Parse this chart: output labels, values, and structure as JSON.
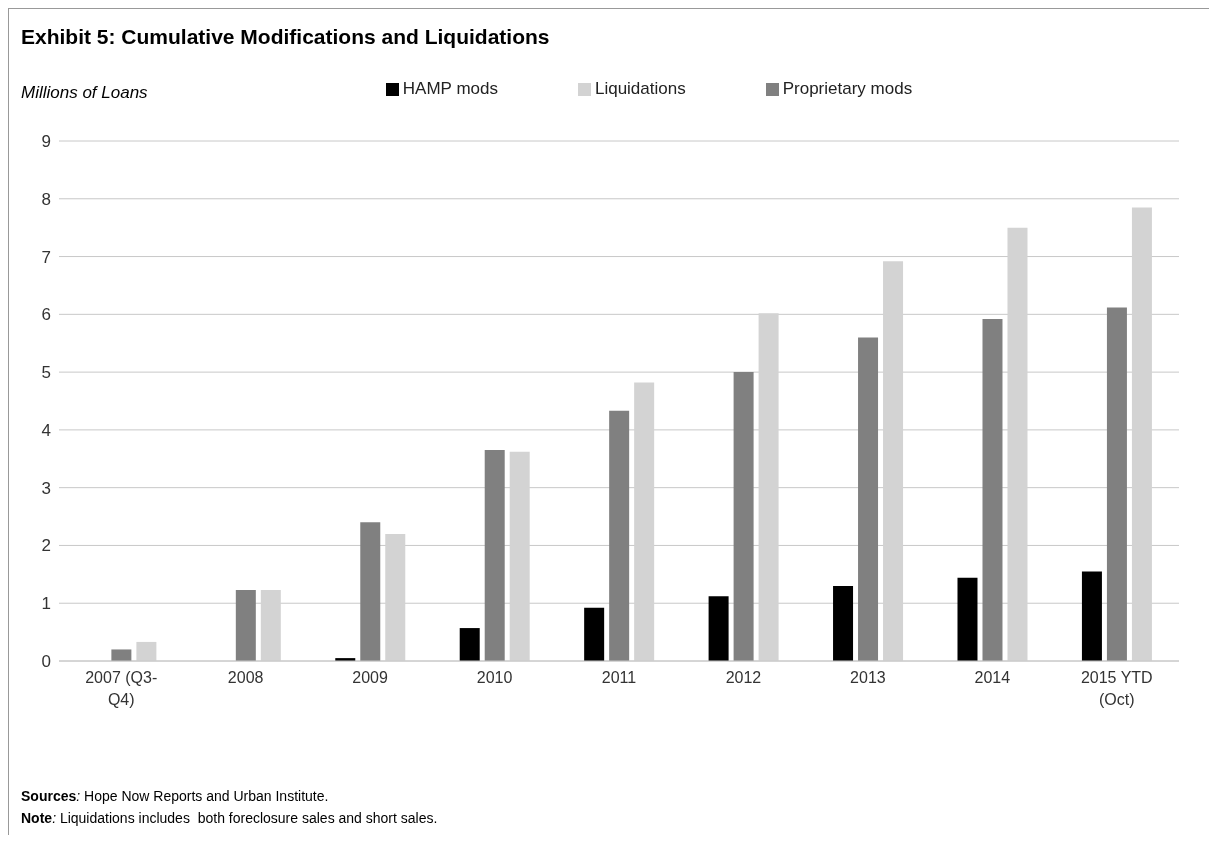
{
  "chart_data": {
    "type": "bar",
    "title": "Exhibit 5: Cumulative Modifications and Liquidations",
    "ylabel": "Millions of Loans",
    "categories": [
      "2007 (Q3-Q4)",
      "2008",
      "2009",
      "2010",
      "2011",
      "2012",
      "2013",
      "2014",
      "2015 YTD (Oct)"
    ],
    "series": [
      {
        "name": "HAMP mods",
        "color": "#000000",
        "values": [
          0,
          0,
          0.05,
          0.57,
          0.92,
          1.12,
          1.3,
          1.44,
          1.55
        ]
      },
      {
        "name": "Proprietary mods",
        "color": "#808080",
        "values": [
          0.2,
          1.23,
          2.4,
          3.65,
          4.33,
          5.0,
          5.6,
          5.92,
          6.12
        ]
      },
      {
        "name": "Liquidations",
        "color": "#d3d3d3",
        "values": [
          0.33,
          1.23,
          2.2,
          3.62,
          4.82,
          6.02,
          6.92,
          7.5,
          7.85
        ]
      }
    ],
    "ylim": [
      0,
      9
    ],
    "yticks": [
      0,
      1,
      2,
      3,
      4,
      5,
      6,
      7,
      8,
      9
    ],
    "grid": "y",
    "legend": "top",
    "annotations": [
      "Sources: Hope Now Reports and Urban Institute.",
      "Note: Liquidations includes  both foreclosure sales and short sales."
    ]
  }
}
